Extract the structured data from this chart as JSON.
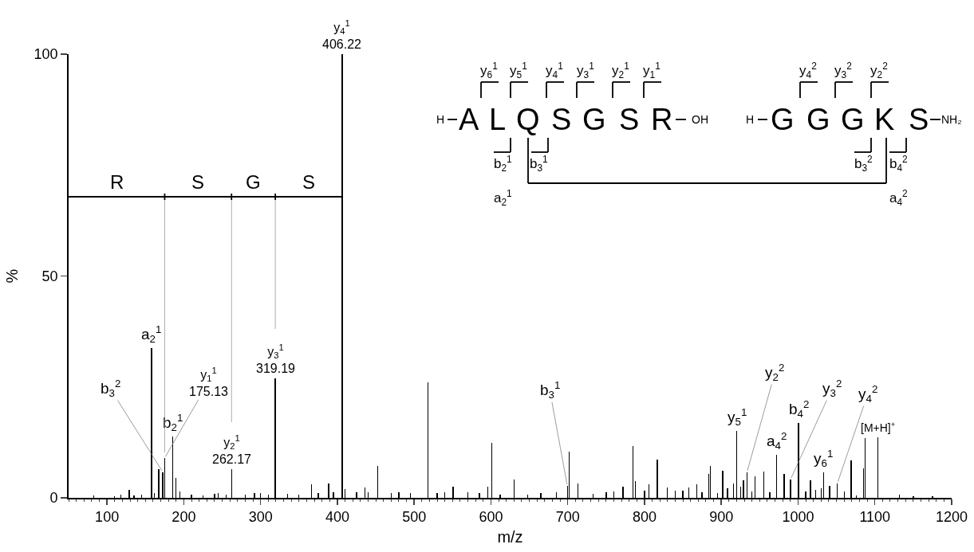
{
  "chart_data": {
    "type": "bar",
    "xlabel": "m/z",
    "ylabel": "%",
    "xlim": [
      50,
      1200
    ],
    "xticks": [
      100,
      200,
      300,
      400,
      500,
      600,
      700,
      800,
      900,
      1000,
      1100,
      1200
    ],
    "ylim": [
      0,
      100
    ],
    "yticks": [
      0,
      50,
      100
    ],
    "series": [
      {
        "color": "#000000",
        "x": [
          83,
          110,
          118,
          129,
          135,
          145,
          158,
          162,
          167.5,
          172.7,
          175.13,
          185.8,
          190,
          195,
          210,
          225,
          240,
          245,
          255,
          262.17,
          280,
          292,
          300,
          310,
          319.19,
          335,
          350,
          366.5,
          375,
          388.6,
          395,
          406.22,
          410,
          425,
          435.7,
          440,
          452.6,
          470,
          480,
          495,
          518,
          530,
          540,
          550.7,
          570,
          585,
          595.7,
          600.8,
          612,
          630.3,
          648,
          665,
          685,
          699.5,
          701.9,
          713.3,
          733,
          750,
          760,
          772,
          784.8,
          788,
          800,
          806,
          816.5,
          829.6,
          840,
          850,
          858,
          868.4,
          875,
          884,
          885.7,
          895,
          902,
          908,
          915.8,
          920.3,
          925,
          929,
          933.5,
          940,
          944,
          955.4,
          963,
          972.3,
          982,
          990.3,
          1000.6,
          1010,
          1016.2,
          1023,
          1030,
          1033.2,
          1041.1,
          1051.2,
          1060,
          1069.2,
          1076,
          1085.5,
          1087.6,
          1104.1,
          1132,
          1150,
          1175
        ],
        "values": [
          0.5,
          0.4,
          0.8,
          1.8,
          0.6,
          0.7,
          33.8,
          1.0,
          6.4,
          5.8,
          9.0,
          13.9,
          4.5,
          1.5,
          0.8,
          0.6,
          0.9,
          1.0,
          0.8,
          6.5,
          0.8,
          1.0,
          1.1,
          0.8,
          26.9,
          0.9,
          0.7,
          3.1,
          1.0,
          3.3,
          1.3,
          100,
          2.0,
          1.3,
          2.3,
          1.2,
          7.1,
          1.0,
          1.3,
          1.0,
          26.0,
          1.0,
          1.3,
          2.6,
          1.2,
          1.0,
          2.6,
          12.4,
          0.8,
          4.2,
          0.8,
          1.0,
          1.2,
          2.7,
          10.5,
          3.3,
          0.9,
          1.2,
          1.5,
          2.6,
          11.7,
          3.8,
          1.6,
          3.0,
          8.7,
          2.4,
          1.6,
          1.7,
          2.4,
          3.0,
          1.2,
          5.3,
          7.1,
          1.0,
          6.1,
          2.2,
          3.3,
          15.0,
          2.5,
          3.9,
          5.8,
          1.5,
          4.9,
          5.9,
          1.2,
          9.7,
          5.4,
          4.2,
          16.9,
          1.4,
          4.0,
          1.8,
          2.1,
          5.7,
          2.7,
          3.3,
          1.5,
          8.5,
          0.6,
          6.7,
          13.5,
          13.6,
          0.8,
          0.3,
          0.3
        ]
      }
    ],
    "annotations": [
      {
        "text": "a$_{2}$$^{1}$",
        "x": 158,
        "y": 33.8
      },
      {
        "text": "b$_{3}$$^{2}$",
        "x": 172.7,
        "y": 5.8
      },
      {
        "text": "y$_{1}$$^{1}$\n175.13",
        "x": 175.13,
        "y": 9.0
      },
      {
        "text": "b$_{2}$$^{1}$",
        "x": 185.8,
        "y": 13.9
      },
      {
        "text": "y$_{2}$$^{1}$\n262.17",
        "x": 262.17,
        "y": 6.5
      },
      {
        "text": "y$_{3}$$^{1}$\n319.19",
        "x": 319.19,
        "y": 26.9
      },
      {
        "text": "y$_{4}$$^{1}$\n406.22",
        "x": 406.22,
        "y": 100
      },
      {
        "text": "b$_{3}$$^{1}$",
        "x": 699.5,
        "y": 2.7
      },
      {
        "text": "y$_{5}$$^{1}$",
        "x": 920.3,
        "y": 15.0
      },
      {
        "text": "y$_{2}$$^{2}$",
        "x": 933.5,
        "y": 5.8
      },
      {
        "text": "a$_{4}$$^{2}$",
        "x": 972.3,
        "y": 9.7
      },
      {
        "text": "y$_{3}$$^{2}$",
        "x": 990.3,
        "y": 4.2
      },
      {
        "text": "b$_{4}$$^{2}$",
        "x": 1000.6,
        "y": 16.9
      },
      {
        "text": "y$_{6}$$^{1}$",
        "x": 1033.2,
        "y": 5.7
      },
      {
        "text": "y$_{4}$$^{2}$",
        "x": 1051.2,
        "y": 3.3
      },
      {
        "text": "[M+H]$^{+}$",
        "x": 1104.1,
        "y": 13.6
      },
      "R",
      "S",
      "G",
      "S",
      "H",
      "A",
      "L",
      "Q",
      "S",
      "G",
      "S",
      "R",
      "OH",
      "H",
      "G",
      "G",
      "G",
      "K",
      "S",
      "NH₂",
      "y$_{6}$$^{1}$",
      "y$_{5}$$^{1}$",
      "y$_{4}$$^{1}$",
      "y$_{3}$$^{1}$",
      "y$_{2}$$^{1}$",
      "y$_{1}$$^{1}$",
      "y$_{4}$$^{2}$",
      "y$_{3}$$^{2}$",
      "y$_{2}$$^{2}$",
      "b$_{2}$$^{1}$",
      "a$_{2}$$^{1}$",
      "b$_{3}$$^{1}$",
      "b$_{3}$$^{2}$",
      "b$_{4}$$^{2}$",
      "a$_{4}$$^{2}$"
    ]
  }
}
